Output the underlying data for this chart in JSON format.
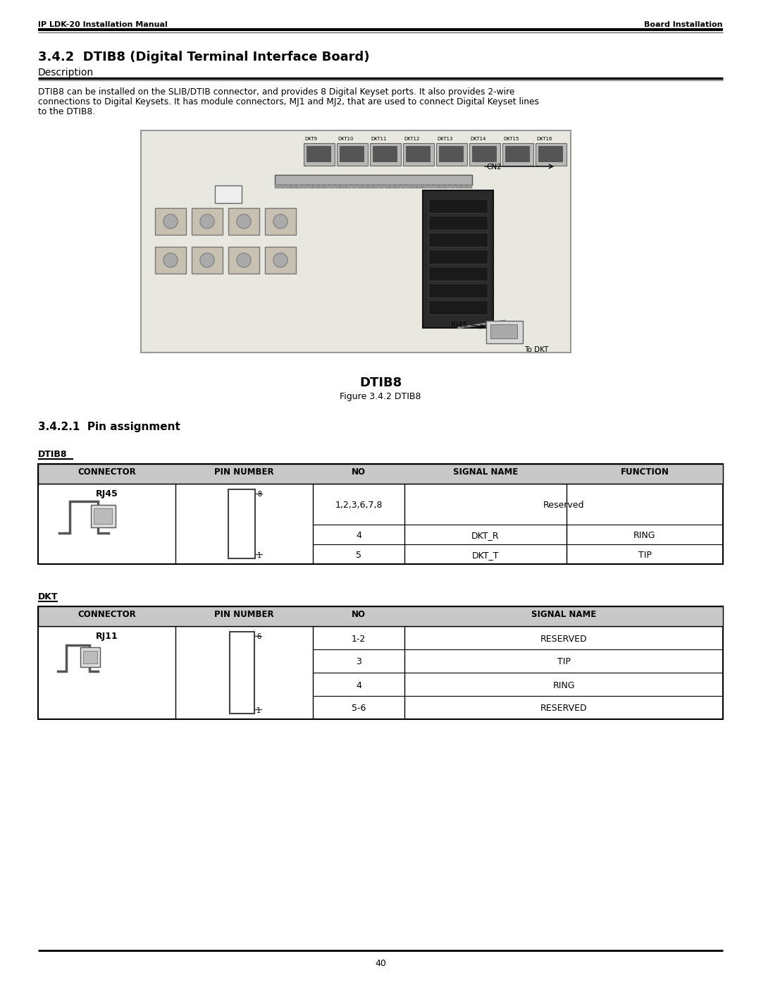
{
  "header_left": "IP LDK-20 Installation Manual",
  "header_right": "Board Installation",
  "section_title": "3.4.2  DTIB8 (Digital Terminal Interface Board)",
  "description_label": "Description",
  "description_text_l1": "DTIB8 can be installed on the SLIB/DTIB connector, and provides 8 Digital Keyset ports. It also provides 2-wire",
  "description_text_l2": "connections to Digital Keysets. It has module connectors, MJ1 and MJ2, that are used to connect Digital Keyset lines",
  "description_text_l3": "to the DTIB8.",
  "figure_label": "DTIB8",
  "figure_caption": "Figure 3.4.2 DTIB8",
  "pin_section_title": "3.4.2.1  Pin assignment",
  "dtib8_label": "DTIB8",
  "dtib8_headers": [
    "CONNECTOR",
    "PIN NUMBER",
    "NO",
    "SIGNAL NAME",
    "FUNCTION"
  ],
  "dtib8_connector": "RJ45",
  "dtib8_rows": [
    [
      "1,2,3,6,7,8",
      "Reserved",
      ""
    ],
    [
      "4",
      "DKT_R",
      "RING"
    ],
    [
      "5",
      "DKT_T",
      "TIP"
    ]
  ],
  "dkt_label": "DKT",
  "dkt_headers": [
    "CONNECTOR",
    "PIN NUMBER",
    "NO",
    "SIGNAL NAME"
  ],
  "dkt_connector": "RJ11",
  "dkt_rows": [
    [
      "1-2",
      "RESERVED"
    ],
    [
      "3",
      "TIP"
    ],
    [
      "4",
      "RING"
    ],
    [
      "5-6",
      "RESERVED"
    ]
  ],
  "page_number": "40",
  "bg_color": "#ffffff",
  "table_header_bg": "#c8c8c8",
  "text_color": "#000000",
  "port_labels": [
    "DKT9",
    "DKT10",
    "DKT11",
    "DKT12",
    "DKT13",
    "DKT14",
    "DKT15",
    "DKT16"
  ]
}
